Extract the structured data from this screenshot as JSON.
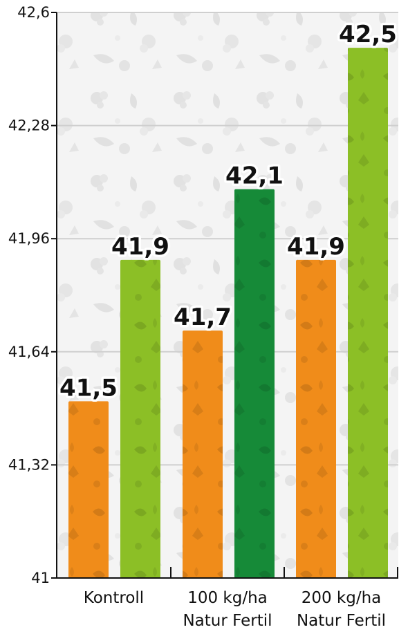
{
  "chart_data": {
    "type": "bar",
    "title": "",
    "xlabel": "",
    "ylabel": "",
    "ylim": [
      41,
      42.6
    ],
    "yticks": [
      "41",
      "41,32",
      "41,64",
      "41,96",
      "42,28",
      "42,6"
    ],
    "ytick_values": [
      41,
      41.32,
      41.64,
      41.96,
      42.28,
      42.6
    ],
    "grid": true,
    "legend": "none",
    "categories": [
      {
        "lines": [
          "Kontroll"
        ]
      },
      {
        "lines": [
          "100 kg/ha",
          "Natur Fertil"
        ]
      },
      {
        "lines": [
          "200 kg/ha",
          "Natur Fertil"
        ]
      }
    ],
    "bars": [
      {
        "category": 0,
        "value": 41.5,
        "label": "41,5",
        "color": "#f08c1a"
      },
      {
        "category": 0,
        "value": 41.9,
        "label": "41,9",
        "color": "#8cbf26"
      },
      {
        "category": 1,
        "value": 41.7,
        "label": "41,7",
        "color": "#f08c1a"
      },
      {
        "category": 1,
        "value": 42.1,
        "label": "42,1",
        "color": "#168a38"
      },
      {
        "category": 2,
        "value": 41.9,
        "label": "41,9",
        "color": "#f08c1a"
      },
      {
        "category": 2,
        "value": 42.5,
        "label": "42,5",
        "color": "#8cbf26"
      }
    ],
    "colors": {
      "orange": "#f08c1a",
      "light_green": "#8cbf26",
      "dark_green": "#168a38",
      "background_pattern": "#e8e8e8"
    }
  }
}
